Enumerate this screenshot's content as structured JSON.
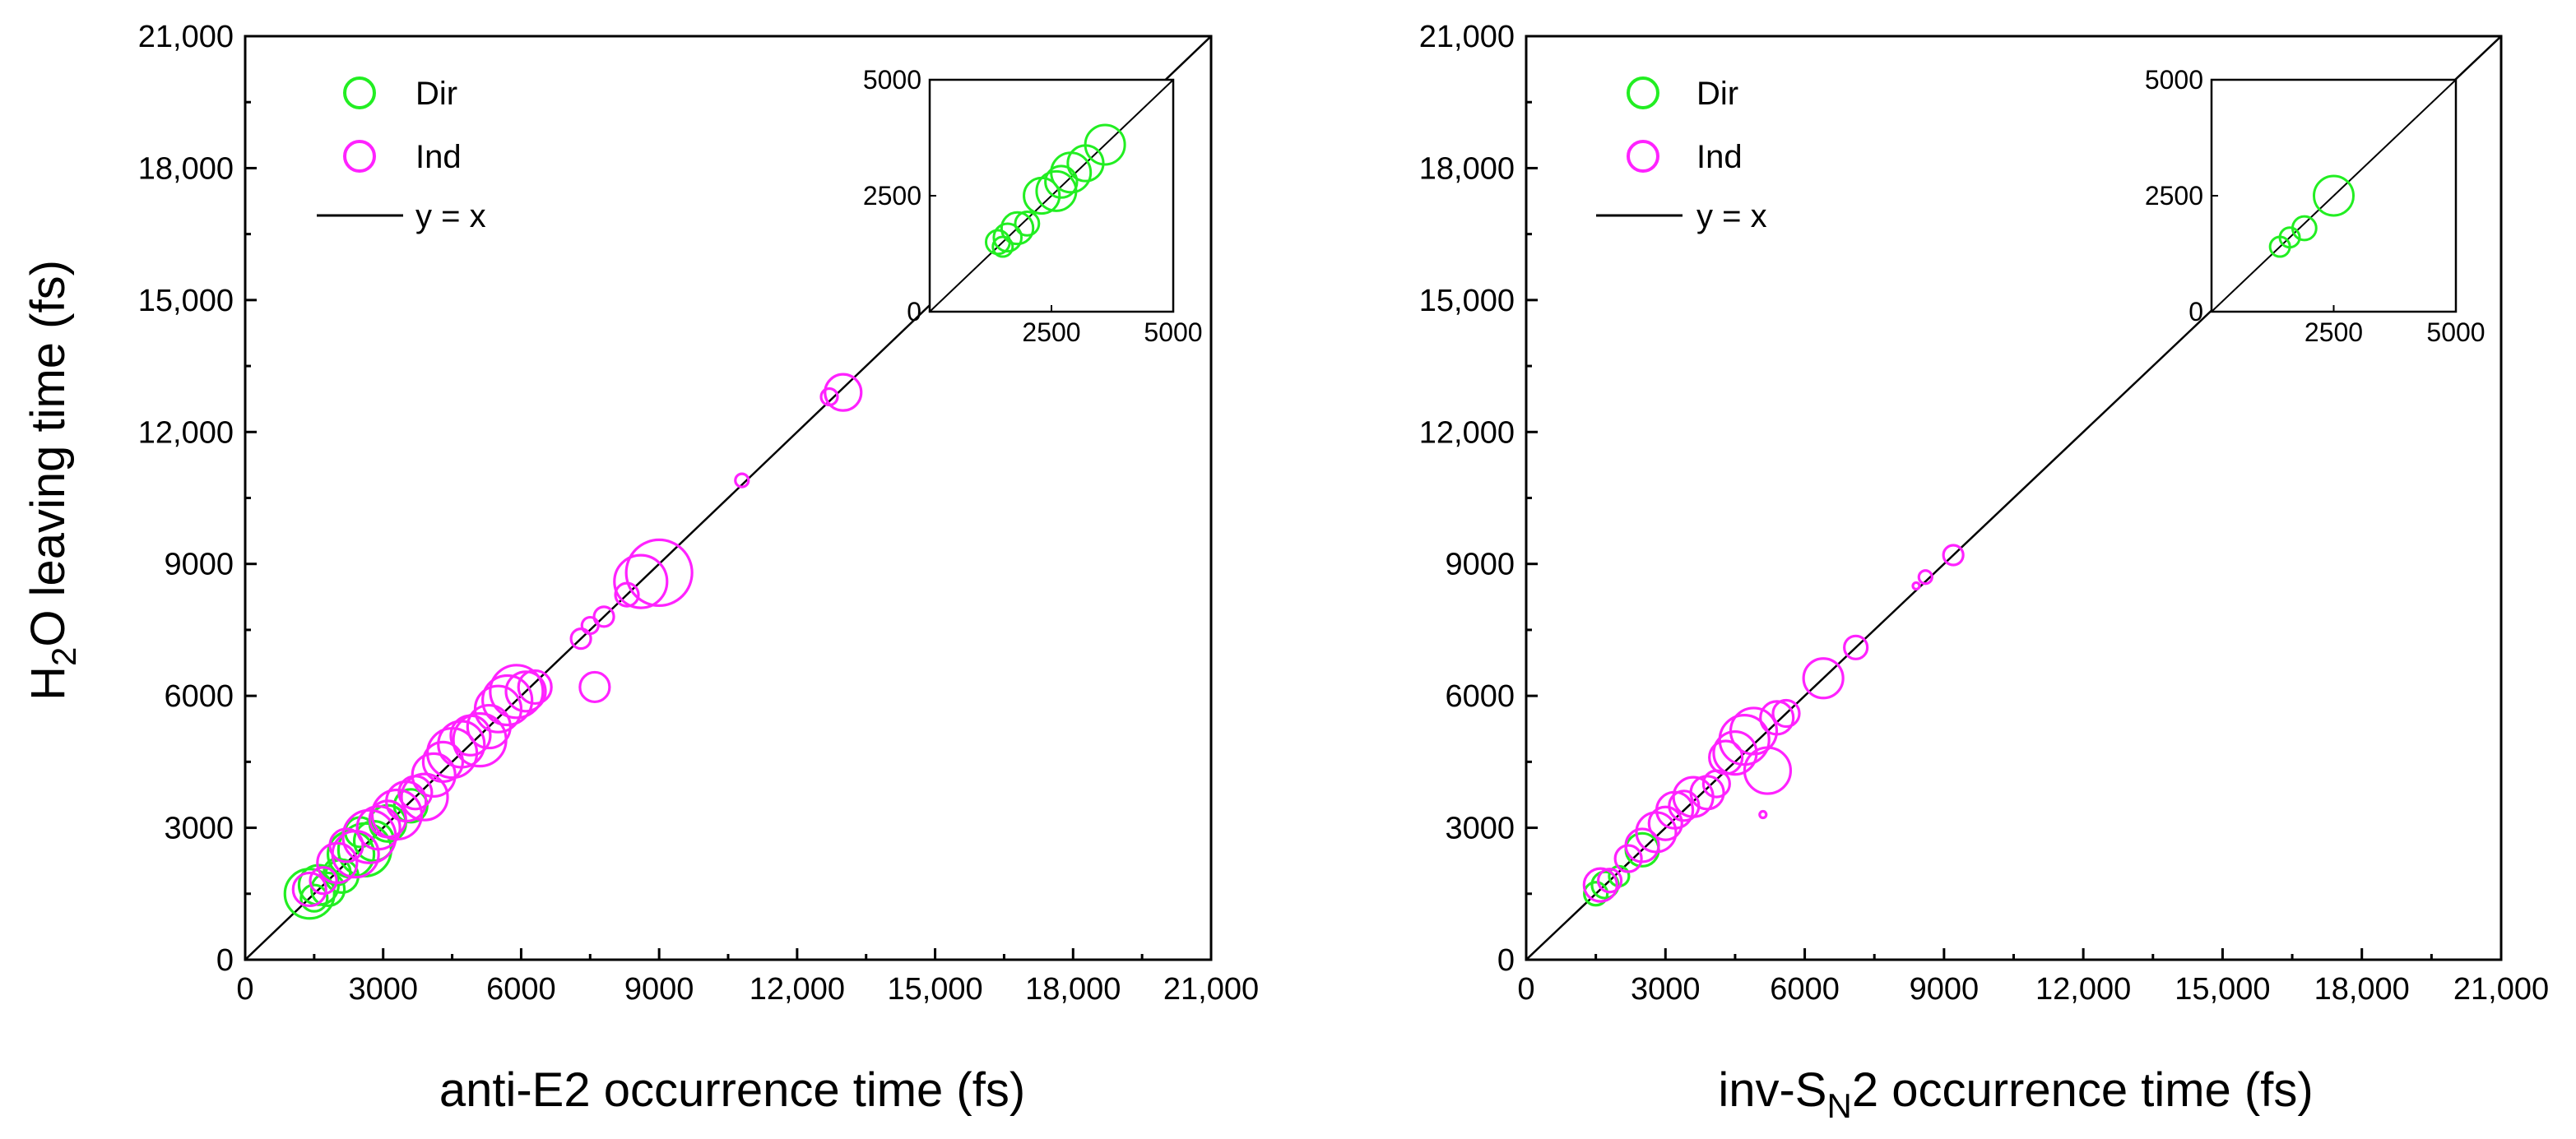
{
  "colors": {
    "dir": "#22ee22",
    "ind": "#ff22ff",
    "line": "#000000"
  },
  "chart_data": [
    {
      "type": "scatter",
      "panel": "left",
      "xlabel_main": "anti-E2 occurrence time (fs)",
      "ylabel_main": "H",
      "ylabel_sub": "2",
      "ylabel_rest": "O leaving time (fs)",
      "xlim": [
        0,
        21000
      ],
      "ylim": [
        0,
        21000
      ],
      "xticks": [
        0,
        3000,
        6000,
        9000,
        12000,
        15000,
        18000,
        21000
      ],
      "xtick_labels": [
        "0",
        "3000",
        "6000",
        "9000",
        "12,000",
        "15,000",
        "18,000",
        "21,000"
      ],
      "yticks": [
        0,
        3000,
        6000,
        9000,
        12000,
        15000,
        18000,
        21000
      ],
      "ytick_labels": [
        "0",
        "3000",
        "6000",
        "9000",
        "12,000",
        "15,000",
        "18,000",
        "21,000"
      ],
      "legend": {
        "dir": "Dir",
        "ind": "Ind",
        "line": "y = x"
      },
      "series": [
        {
          "name": "Dir",
          "color": "#22ee22",
          "points": [
            [
              1400,
              1500,
              1.5
            ],
            [
              1600,
              1700,
              1.2
            ],
            [
              1800,
              1600,
              1.0
            ],
            [
              2000,
              2000,
              0.8
            ],
            [
              2300,
              2400,
              1.4
            ],
            [
              2600,
              2500,
              1.6
            ],
            [
              2800,
              2700,
              1.2
            ],
            [
              2500,
              2900,
              0.9
            ],
            [
              3100,
              3100,
              1.1
            ],
            [
              3600,
              3500,
              1.0
            ],
            [
              1500,
              1400,
              0.8
            ],
            [
              2100,
              1900,
              1.0
            ]
          ]
        },
        {
          "name": "Ind",
          "color": "#ff22ff",
          "points": [
            [
              1400,
              1600,
              1.0
            ],
            [
              1700,
              1800,
              0.8
            ],
            [
              2000,
              2200,
              1.2
            ],
            [
              2200,
              2600,
              1.0
            ],
            [
              2400,
              2400,
              1.4
            ],
            [
              2700,
              2800,
              1.6
            ],
            [
              2900,
              3000,
              1.3
            ],
            [
              3100,
              3200,
              1.1
            ],
            [
              3300,
              3300,
              1.5
            ],
            [
              3500,
              3600,
              1.2
            ],
            [
              3700,
              3800,
              1.0
            ],
            [
              3900,
              3700,
              1.4
            ],
            [
              4100,
              4200,
              1.3
            ],
            [
              4300,
              4500,
              1.2
            ],
            [
              4500,
              4700,
              1.5
            ],
            [
              4700,
              4900,
              1.4
            ],
            [
              4900,
              5100,
              1.2
            ],
            [
              5100,
              5000,
              1.6
            ],
            [
              5300,
              5300,
              1.3
            ],
            [
              5500,
              5700,
              1.4
            ],
            [
              5700,
              5900,
              1.5
            ],
            [
              5900,
              6100,
              1.6
            ],
            [
              6100,
              6100,
              1.2
            ],
            [
              6300,
              6200,
              1.0
            ],
            [
              7300,
              7300,
              0.6
            ],
            [
              7500,
              7600,
              0.5
            ],
            [
              7800,
              7800,
              0.6
            ],
            [
              7600,
              6200,
              0.9
            ],
            [
              8300,
              8300,
              0.7
            ],
            [
              8600,
              8600,
              1.6
            ],
            [
              9000,
              8800,
              2.0
            ],
            [
              10800,
              10900,
              0.4
            ],
            [
              12700,
              12800,
              0.5
            ],
            [
              13000,
              12900,
              1.1
            ]
          ]
        },
        {
          "name": "y = x",
          "values": [
            [
              0,
              0
            ],
            [
              21000,
              21000
            ]
          ]
        }
      ],
      "inset": {
        "xlim": [
          0,
          5000
        ],
        "ylim": [
          0,
          5000
        ],
        "xtick_labels": [
          "2500",
          "5000"
        ],
        "ytick_labels": [
          "0",
          "2500",
          "5000"
        ],
        "points": [
          [
            1400,
            1500,
            0.6
          ],
          [
            1600,
            1600,
            0.7
          ],
          [
            1500,
            1400,
            0.5
          ],
          [
            1800,
            1800,
            0.8
          ],
          [
            2000,
            1900,
            0.6
          ],
          [
            2300,
            2500,
            0.9
          ],
          [
            2600,
            2600,
            1.0
          ],
          [
            2700,
            2800,
            0.8
          ],
          [
            2900,
            3000,
            1.0
          ],
          [
            3200,
            3200,
            0.9
          ],
          [
            3600,
            3600,
            1.0
          ]
        ]
      }
    },
    {
      "type": "scatter",
      "panel": "right",
      "xlabel_main": "inv-S",
      "xlabel_sub": "N",
      "xlabel_rest": "2 occurrence time (fs)",
      "xlim": [
        0,
        21000
      ],
      "ylim": [
        0,
        21000
      ],
      "xticks": [
        0,
        3000,
        6000,
        9000,
        12000,
        15000,
        18000,
        21000
      ],
      "xtick_labels": [
        "0",
        "3000",
        "6000",
        "9000",
        "12,000",
        "15,000",
        "18,000",
        "21,000"
      ],
      "yticks": [
        0,
        3000,
        6000,
        9000,
        12000,
        15000,
        18000,
        21000
      ],
      "ytick_labels": [
        "0",
        "3000",
        "6000",
        "9000",
        "12,000",
        "15,000",
        "18,000",
        "21,000"
      ],
      "legend": {
        "dir": "Dir",
        "ind": "Ind",
        "line": "y = x"
      },
      "series": [
        {
          "name": "Dir",
          "color": "#22ee22",
          "points": [
            [
              1500,
              1500,
              0.7
            ],
            [
              1700,
              1700,
              0.8
            ],
            [
              2000,
              1900,
              0.6
            ],
            [
              2500,
              2500,
              1.0
            ]
          ]
        },
        {
          "name": "Ind",
          "color": "#ff22ff",
          "points": [
            [
              1600,
              1700,
              1.0
            ],
            [
              1800,
              1800,
              0.7
            ],
            [
              2200,
              2300,
              0.8
            ],
            [
              2500,
              2600,
              1.0
            ],
            [
              2800,
              2900,
              1.2
            ],
            [
              3000,
              3100,
              1.0
            ],
            [
              3200,
              3400,
              1.1
            ],
            [
              3400,
              3500,
              0.9
            ],
            [
              3600,
              3700,
              1.2
            ],
            [
              3900,
              3800,
              1.0
            ],
            [
              4100,
              4000,
              0.8
            ],
            [
              4300,
              4600,
              1.0
            ],
            [
              4500,
              4700,
              1.3
            ],
            [
              4700,
              5000,
              1.5
            ],
            [
              4900,
              5200,
              1.4
            ],
            [
              5100,
              3300,
              0.2
            ],
            [
              5200,
              4300,
              1.4
            ],
            [
              5400,
              5500,
              1.0
            ],
            [
              5600,
              5600,
              0.8
            ],
            [
              6400,
              6400,
              1.2
            ],
            [
              7100,
              7100,
              0.7
            ],
            [
              8400,
              8500,
              0.2
            ],
            [
              8600,
              8700,
              0.4
            ],
            [
              9200,
              9200,
              0.6
            ]
          ]
        },
        {
          "name": "y = x",
          "values": [
            [
              0,
              0
            ],
            [
              21000,
              21000
            ]
          ]
        }
      ],
      "inset": {
        "xlim": [
          0,
          5000
        ],
        "ylim": [
          0,
          5000
        ],
        "xtick_labels": [
          "2500",
          "5000"
        ],
        "ytick_labels": [
          "0",
          "2500",
          "5000"
        ],
        "points": [
          [
            1400,
            1400,
            0.5
          ],
          [
            1600,
            1600,
            0.5
          ],
          [
            1900,
            1800,
            0.6
          ],
          [
            2500,
            2500,
            1.0
          ]
        ]
      }
    }
  ]
}
